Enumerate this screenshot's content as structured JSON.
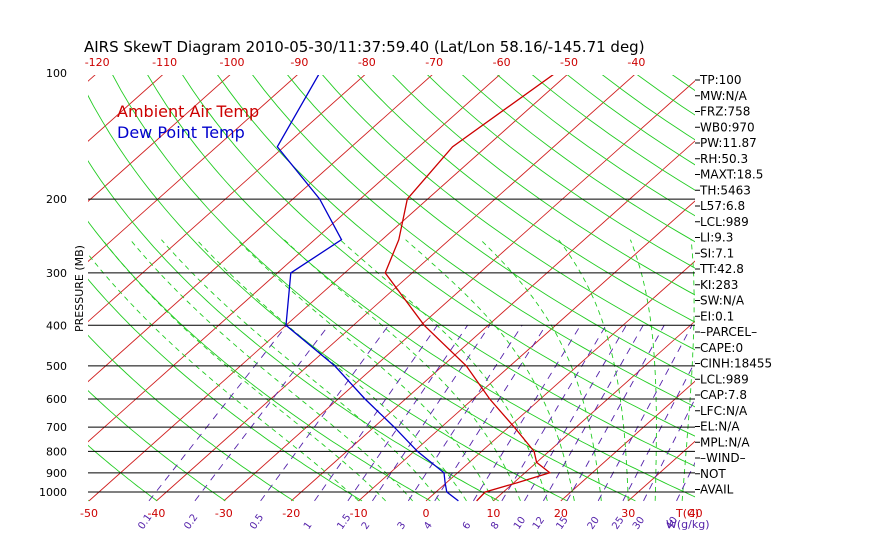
{
  "chart_data": {
    "type": "line",
    "title": "AIRS SkewT Diagram 2010-05-30/11:37:59.40 (Lat/Lon 58.16/-145.71 deg)",
    "ylabel": "PRESSURE (MB)",
    "xlabel_unit": "T(C)",
    "mixing_ratio_unit": "W(g/kg)",
    "y_scale": "log",
    "y_range_mb": [
      1050,
      100
    ],
    "pressure_ticks": [
      100,
      200,
      300,
      400,
      500,
      600,
      700,
      800,
      900,
      1000
    ],
    "top_temp_ticks": [
      -120,
      -110,
      -100,
      -90,
      -80,
      -70,
      -60,
      -50,
      -40
    ],
    "bottom_temp_ticks": [
      -50,
      -40,
      -30,
      -20,
      -10,
      0,
      10,
      20,
      30,
      40
    ],
    "mixing_ratio_ticks": [
      "0.1",
      "0.2",
      "0.5",
      "1",
      "1.5",
      "2",
      "3",
      "4",
      "6",
      "8",
      "10",
      "12",
      "15",
      "20",
      "25",
      "30",
      "40"
    ],
    "series": [
      {
        "name": "Ambient Air Temp",
        "color": "#cc0000",
        "points": [
          {
            "p": 1050,
            "t": 7.5
          },
          {
            "p": 1000,
            "t": 7.3
          },
          {
            "p": 950,
            "t": 10.5
          },
          {
            "p": 900,
            "t": 13.7
          },
          {
            "p": 850,
            "t": 10.0
          },
          {
            "p": 800,
            "t": 7.8
          },
          {
            "p": 700,
            "t": 0.8
          },
          {
            "p": 600,
            "t": -7.5
          },
          {
            "p": 500,
            "t": -16.5
          },
          {
            "p": 400,
            "t": -29.5
          },
          {
            "p": 300,
            "t": -44.0
          },
          {
            "p": 250,
            "t": -47.5
          },
          {
            "p": 200,
            "t": -53.0
          },
          {
            "p": 150,
            "t": -55.0
          },
          {
            "p": 100,
            "t": -52.0
          }
        ]
      },
      {
        "name": "Dew Point Temp",
        "color": "#0000cc",
        "points": [
          {
            "p": 1050,
            "t": 4.8
          },
          {
            "p": 1000,
            "t": 1.6
          },
          {
            "p": 950,
            "t": -0.2
          },
          {
            "p": 900,
            "t": -2.0
          },
          {
            "p": 800,
            "t": -9.5
          },
          {
            "p": 700,
            "t": -17.0
          },
          {
            "p": 600,
            "t": -26.0
          },
          {
            "p": 500,
            "t": -36.0
          },
          {
            "p": 400,
            "t": -50.0
          },
          {
            "p": 300,
            "t": -58.0
          },
          {
            "p": 250,
            "t": -56.0
          },
          {
            "p": 200,
            "t": -66.0
          },
          {
            "p": 150,
            "t": -81.0
          },
          {
            "p": 100,
            "t": -87.0
          }
        ]
      }
    ],
    "legend": [
      {
        "label": "Ambient Air Temp",
        "color": "#cc0000"
      },
      {
        "label": "Dew Point Temp",
        "color": "#0000cc"
      }
    ],
    "legend_position": "top-left",
    "indices": [
      "TP:100",
      "MW:N/A",
      "FRZ:758",
      "WB0:970",
      "PW:11.87",
      "RH:50.3",
      "MAXT:18.5",
      "TH:5463",
      "L57:6.8",
      "LCL:989",
      "LI:9.3",
      "SI:7.1",
      "TT:42.8",
      "KI:283",
      "SW:N/A",
      "EI:0.1",
      "–PARCEL–",
      "CAPE:0",
      "CINH:18455",
      "LCL:989",
      "CAP:7.8",
      "LFC:N/A",
      "EL:N/A",
      "MPL:N/A",
      "–WIND–",
      "NOT",
      "AVAIL"
    ],
    "colors": {
      "isotherms": "#d02020",
      "dry_adiabats": "#22cc22",
      "moist_adiabats": "#22cc22",
      "mixing_ratio": "#5522aa",
      "isobars": "#000000"
    }
  }
}
